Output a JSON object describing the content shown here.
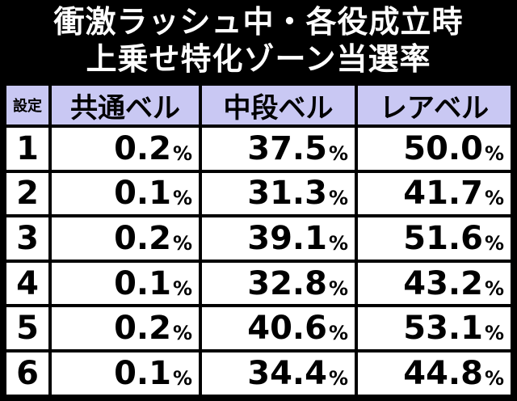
{
  "title": {
    "line1": "衝激ラッシュ中・各役成立時",
    "line2": "上乗せ特化ゾーン当選率"
  },
  "table": {
    "headers": [
      "設定",
      "共通ベル",
      "中段ベル",
      "レアベル"
    ],
    "rows": [
      {
        "setting": "1",
        "common": "0.2",
        "middle": "37.5",
        "rare": "50.0"
      },
      {
        "setting": "2",
        "common": "0.1",
        "middle": "31.3",
        "rare": "41.7"
      },
      {
        "setting": "3",
        "common": "0.2",
        "middle": "39.1",
        "rare": "51.6"
      },
      {
        "setting": "4",
        "common": "0.1",
        "middle": "32.8",
        "rare": "43.2"
      },
      {
        "setting": "5",
        "common": "0.2",
        "middle": "40.6",
        "rare": "53.1"
      },
      {
        "setting": "6",
        "common": "0.1",
        "middle": "34.4",
        "rare": "44.8"
      }
    ],
    "unit": "%"
  },
  "colors": {
    "background": "#000000",
    "header_bg": "#c9c8f3",
    "cell_bg": "#ffffff"
  }
}
